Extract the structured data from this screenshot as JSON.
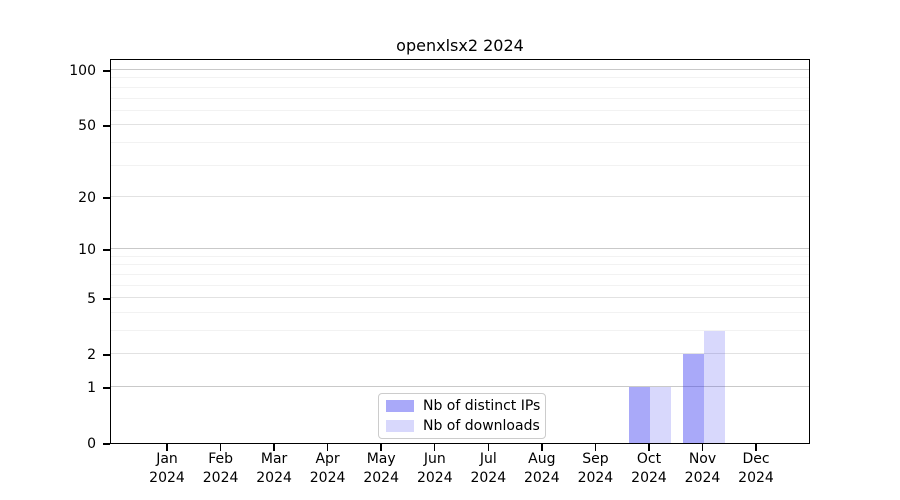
{
  "chart_data": {
    "type": "bar",
    "title": "openxlsx2 2024",
    "categories": [
      "Jan 2024",
      "Feb 2024",
      "Mar 2024",
      "Apr 2024",
      "May 2024",
      "Jun 2024",
      "Jul 2024",
      "Aug 2024",
      "Sep 2024",
      "Oct 2024",
      "Nov 2024",
      "Dec 2024"
    ],
    "x_tick_months": [
      "Jan",
      "Feb",
      "Mar",
      "Apr",
      "May",
      "Jun",
      "Jul",
      "Aug",
      "Sep",
      "Oct",
      "Nov",
      "Dec"
    ],
    "x_tick_year": "2024",
    "series": [
      {
        "name": "Nb of distinct IPs",
        "values": [
          0,
          0,
          0,
          0,
          0,
          0,
          0,
          0,
          0,
          1,
          2,
          0
        ],
        "color": "#3232F06B",
        "solid_equivalent": "#a9a9f8"
      },
      {
        "name": "Nb of downloads",
        "values": [
          0,
          0,
          0,
          0,
          0,
          0,
          0,
          0,
          0,
          1,
          3,
          0
        ],
        "color": "#3232F031",
        "solid_equivalent": "#d8d8f8"
      }
    ],
    "yscale": "log1p",
    "ylabel": "",
    "xlabel": "",
    "yticks": [
      0,
      1,
      2,
      5,
      10,
      20,
      50,
      100
    ],
    "minor_gridline_values": [
      3,
      4,
      6,
      7,
      8,
      9,
      30,
      40,
      60,
      70,
      80,
      90
    ],
    "decade_gridline_values": [
      1,
      10,
      100
    ],
    "ylim": [
      0,
      116
    ],
    "grid": true,
    "legend_position": "bottom-center",
    "axis_color": "#000000",
    "background_color": "#ffffff"
  }
}
